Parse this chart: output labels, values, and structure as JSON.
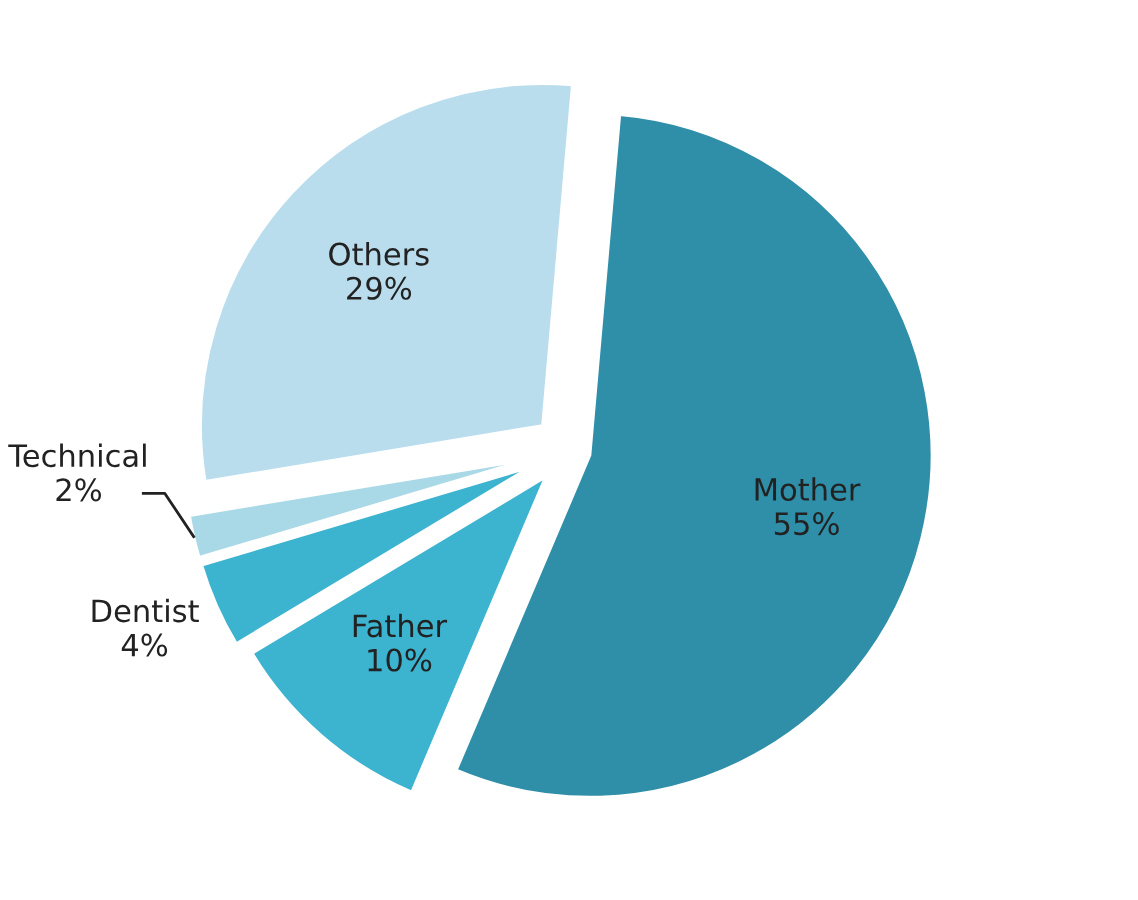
{
  "chart_data": {
    "type": "pie",
    "categories": [
      "Mother",
      "Father",
      "Dentist",
      "Technical",
      "Others"
    ],
    "values": [
      55,
      10,
      4,
      2,
      29
    ],
    "colors": [
      "#2f8ea8",
      "#3cb3cf",
      "#3cb3cf",
      "#a9d9e7",
      "#b9dded"
    ],
    "value_labels": [
      "55%",
      "10%",
      "4%",
      "2%",
      "29%"
    ],
    "legend": false
  }
}
